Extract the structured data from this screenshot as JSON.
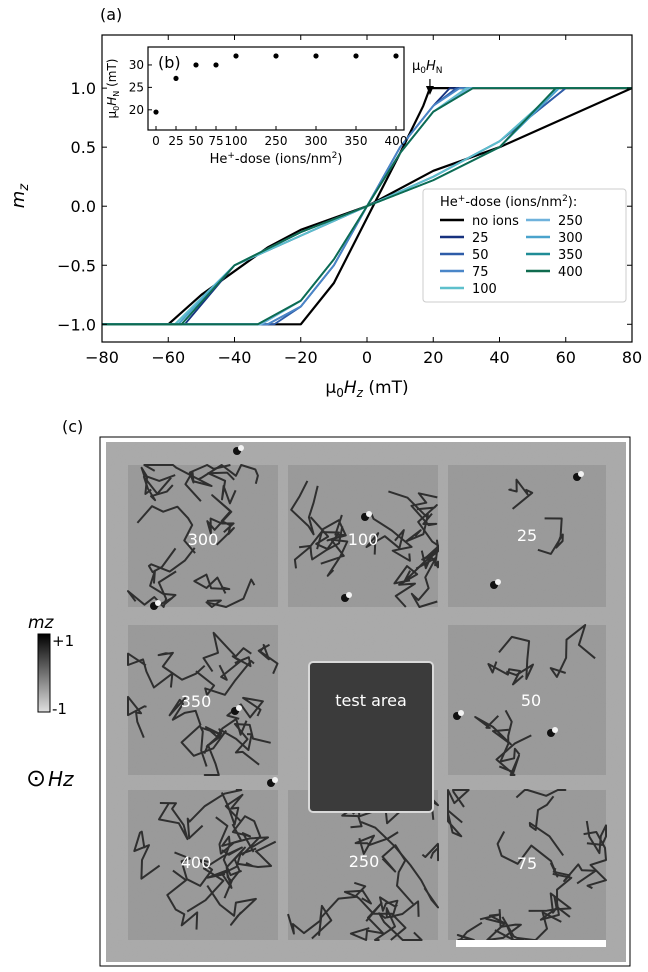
{
  "panels": {
    "a": "(a)",
    "b": "(b)",
    "c": "(c)"
  },
  "chart_data": [
    {
      "type": "line",
      "panel": "a",
      "xlabel": "μ0Hz (mT)",
      "ylabel": "mz",
      "xlim": [
        -80,
        80
      ],
      "ylim": [
        -1.15,
        1.45
      ],
      "xticks": [
        -80,
        -60,
        -40,
        -20,
        0,
        20,
        40,
        60,
        80
      ],
      "xtick_labels": [
        "−80",
        "−60",
        "−40",
        "−20",
        "0",
        "20",
        "40",
        "60",
        "80"
      ],
      "yticks": [
        -1.0,
        -0.5,
        0.0,
        0.5,
        1.0
      ],
      "ytick_labels": [
        "−1.0",
        "−0.5",
        "0.0",
        "0.5",
        "1.0"
      ],
      "annotation": {
        "text": "μ0HN",
        "x": 19,
        "y": 1.0
      },
      "legend": {
        "title": "He+-dose (ions/nm2):",
        "placement": "lower-right",
        "entries": [
          "no ions",
          "25",
          "50",
          "75",
          "100",
          "250",
          "300",
          "350",
          "400"
        ]
      },
      "series": [
        {
          "name": "no ions",
          "color": "#000000",
          "up_x": [
            -80,
            -40,
            -30,
            -25,
            -20,
            -10,
            0,
            10,
            17,
            19,
            20,
            80
          ],
          "up_y": [
            -1.0,
            -1.0,
            -1.0,
            -1.0,
            -1.0,
            -0.65,
            -0.1,
            0.45,
            0.85,
            1.0,
            1.0,
            1.0
          ],
          "down_x": [
            80,
            40,
            20,
            0,
            -20,
            -30,
            -40,
            -50,
            -60,
            -80
          ],
          "down_y": [
            1.0,
            0.5,
            0.3,
            0.0,
            -0.2,
            -0.35,
            -0.55,
            -0.75,
            -1.0,
            -1.0
          ]
        },
        {
          "name": "25",
          "color": "#16317e",
          "up_x": [
            -80,
            -30,
            -20,
            -10,
            0,
            10,
            20,
            25,
            80
          ],
          "up_y": [
            -1.0,
            -1.0,
            -0.85,
            -0.5,
            0.0,
            0.5,
            0.85,
            1.0,
            1.0
          ],
          "down_x": [
            80,
            60,
            40,
            20,
            0,
            -20,
            -40,
            -55,
            -80
          ],
          "down_y": [
            1.0,
            1.0,
            0.55,
            0.25,
            0.0,
            -0.25,
            -0.5,
            -1.0,
            -1.0
          ]
        },
        {
          "name": "50",
          "color": "#2e5ca8",
          "up_x": [
            -80,
            -28,
            -20,
            -10,
            0,
            10,
            20,
            27,
            80
          ],
          "up_y": [
            -1.0,
            -1.0,
            -0.85,
            -0.5,
            0.0,
            0.5,
            0.85,
            1.0,
            1.0
          ],
          "down_x": [
            80,
            60,
            40,
            20,
            0,
            -20,
            -40,
            -56,
            -80
          ],
          "down_y": [
            1.0,
            1.0,
            0.55,
            0.25,
            0.0,
            -0.25,
            -0.5,
            -1.0,
            -1.0
          ]
        },
        {
          "name": "75",
          "color": "#4a86c8",
          "up_x": [
            -80,
            -30,
            -20,
            -10,
            0,
            10,
            20,
            28,
            80
          ],
          "up_y": [
            -1.0,
            -1.0,
            -0.85,
            -0.5,
            0.0,
            0.5,
            0.85,
            1.0,
            1.0
          ],
          "down_x": [
            80,
            58,
            40,
            20,
            0,
            -20,
            -40,
            -58,
            -80
          ],
          "down_y": [
            1.0,
            1.0,
            0.55,
            0.25,
            0.0,
            -0.25,
            -0.5,
            -1.0,
            -1.0
          ]
        },
        {
          "name": "100",
          "color": "#5ec0cc",
          "up_x": [
            -80,
            -32,
            -20,
            -10,
            0,
            10,
            20,
            30,
            80
          ],
          "up_y": [
            -1.0,
            -1.0,
            -0.8,
            -0.45,
            0.0,
            0.45,
            0.8,
            1.0,
            1.0
          ],
          "down_x": [
            80,
            58,
            40,
            20,
            0,
            -20,
            -40,
            -58,
            -80
          ],
          "down_y": [
            1.0,
            1.0,
            0.55,
            0.25,
            0.0,
            -0.25,
            -0.5,
            -1.0,
            -1.0
          ]
        },
        {
          "name": "250",
          "color": "#6fb2dc",
          "up_x": [
            -80,
            -32,
            -20,
            -10,
            0,
            10,
            20,
            31,
            80
          ],
          "up_y": [
            -1.0,
            -1.0,
            -0.8,
            -0.45,
            0.0,
            0.45,
            0.8,
            1.0,
            1.0
          ],
          "down_x": [
            80,
            58,
            40,
            20,
            0,
            -20,
            -40,
            -57,
            -80
          ],
          "down_y": [
            1.0,
            1.0,
            0.5,
            0.22,
            0.0,
            -0.22,
            -0.5,
            -1.0,
            -1.0
          ]
        },
        {
          "name": "300",
          "color": "#4aa3cc",
          "up_x": [
            -80,
            -33,
            -20,
            -10,
            0,
            10,
            20,
            32,
            80
          ],
          "up_y": [
            -1.0,
            -1.0,
            -0.8,
            -0.45,
            0.0,
            0.45,
            0.8,
            1.0,
            1.0
          ],
          "down_x": [
            80,
            58,
            40,
            20,
            0,
            -20,
            -40,
            -57,
            -80
          ],
          "down_y": [
            1.0,
            1.0,
            0.5,
            0.22,
            0.0,
            -0.22,
            -0.5,
            -1.0,
            -1.0
          ]
        },
        {
          "name": "350",
          "color": "#1f8c96",
          "up_x": [
            -80,
            -33,
            -20,
            -10,
            0,
            10,
            20,
            32,
            80
          ],
          "up_y": [
            -1.0,
            -1.0,
            -0.8,
            -0.45,
            0.0,
            0.45,
            0.8,
            1.0,
            1.0
          ],
          "down_x": [
            80,
            57,
            40,
            20,
            0,
            -20,
            -40,
            -56,
            -80
          ],
          "down_y": [
            1.0,
            1.0,
            0.5,
            0.22,
            0.0,
            -0.22,
            -0.5,
            -1.0,
            -1.0
          ]
        },
        {
          "name": "400",
          "color": "#0f6b4f",
          "up_x": [
            -80,
            -33,
            -20,
            -10,
            0,
            10,
            20,
            32,
            80
          ],
          "up_y": [
            -1.0,
            -1.0,
            -0.8,
            -0.45,
            0.0,
            0.45,
            0.8,
            1.0,
            1.0
          ],
          "down_x": [
            80,
            57,
            40,
            20,
            0,
            -20,
            -40,
            -56,
            -80
          ],
          "down_y": [
            1.0,
            1.0,
            0.5,
            0.22,
            0.0,
            -0.22,
            -0.5,
            -1.0,
            -1.0
          ]
        }
      ]
    },
    {
      "type": "scatter",
      "panel": "b",
      "xlabel": "He+-dose (ions/nm2)",
      "ylabel": "μ0HN (mT)",
      "xlim": [
        -12,
        412
      ],
      "ylim": [
        15.5,
        34
      ],
      "xticks": [
        0,
        25,
        50,
        75,
        100,
        250,
        300,
        350,
        400
      ],
      "xtick_labels": [
        "0",
        "25",
        "50",
        "75",
        "100",
        "250",
        "300",
        "350",
        "400"
      ],
      "yticks": [
        20,
        25,
        30
      ],
      "ytick_labels": [
        "20",
        "25",
        "30"
      ],
      "categories": [
        "0",
        "25",
        "50",
        "75",
        "100",
        "250",
        "300",
        "350",
        "400"
      ],
      "values": [
        19.5,
        27,
        30,
        30,
        32,
        32,
        32,
        32,
        32
      ]
    }
  ],
  "image_c": {
    "region_labels": [
      "300",
      "100",
      "25",
      "350",
      "test area",
      "50",
      "400",
      "250",
      "75"
    ],
    "colorbar": {
      "label": "mz",
      "max_label": "+1",
      "min_label": "-1"
    },
    "field_symbol": "⊙",
    "field_label": "Hz"
  }
}
